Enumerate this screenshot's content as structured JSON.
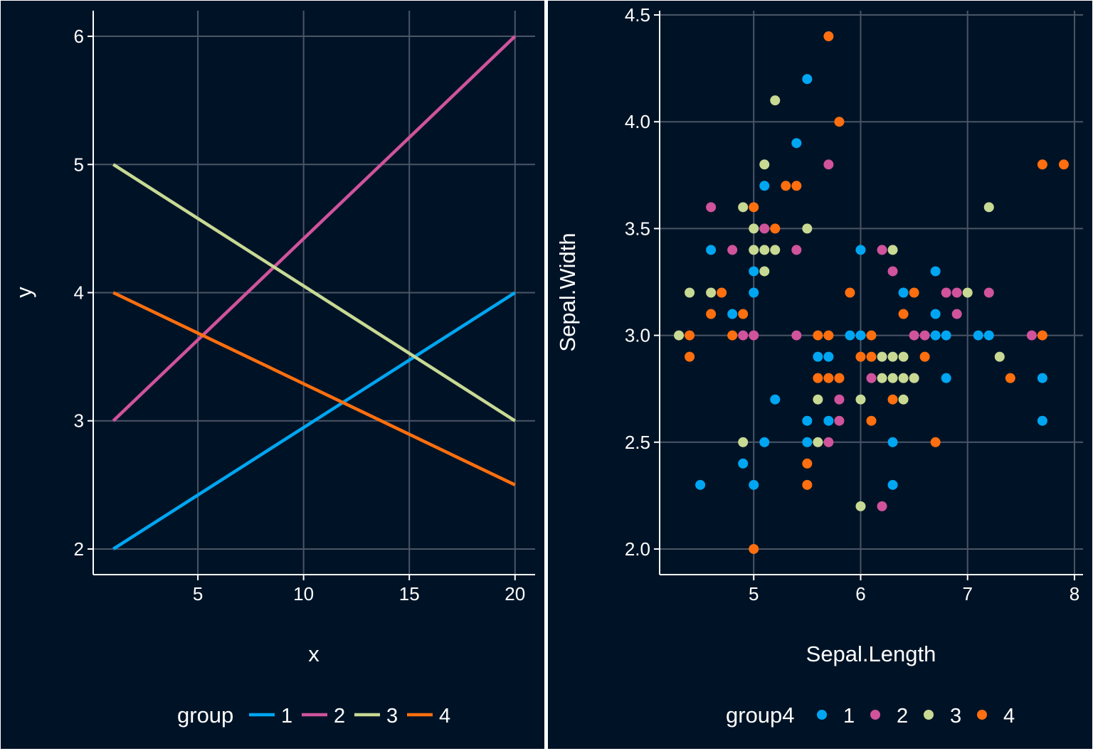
{
  "colors": {
    "background": "#001326",
    "divider": "#ffffff",
    "grid": "#4a5566",
    "text": "#ffffff",
    "palette": [
      "#00a6f2",
      "#d0539c",
      "#c8d994",
      "#ff6f0f"
    ]
  },
  "chart_data": [
    {
      "type": "line",
      "title": "",
      "xlabel": "x",
      "ylabel": "y",
      "xlim": [
        1,
        20
      ],
      "ylim": [
        2,
        6
      ],
      "xticks": [
        "5",
        "10",
        "15",
        "20"
      ],
      "yticks": [
        "2",
        "3",
        "4",
        "5",
        "6"
      ],
      "grid": true,
      "legend": {
        "title": "group",
        "position": "bottom",
        "labels": [
          "1",
          "2",
          "3",
          "4"
        ]
      },
      "series": [
        {
          "name": "1",
          "points": [
            [
              1,
              2
            ],
            [
              20,
              4
            ]
          ]
        },
        {
          "name": "2",
          "points": [
            [
              1,
              3
            ],
            [
              20,
              6
            ]
          ]
        },
        {
          "name": "3",
          "points": [
            [
              1,
              5
            ],
            [
              20,
              3
            ]
          ]
        },
        {
          "name": "4",
          "points": [
            [
              1,
              4
            ],
            [
              20,
              2.5
            ]
          ]
        }
      ]
    },
    {
      "type": "scatter",
      "title": "",
      "xlabel": "Sepal.Length",
      "ylabel": "Sepal.Width",
      "xlim": [
        4.3,
        7.9
      ],
      "ylim": [
        2.0,
        4.4
      ],
      "xticks": [
        "5",
        "6",
        "7",
        "8"
      ],
      "yticks": [
        "2.0",
        "2.5",
        "3.0",
        "3.5",
        "4.0",
        "4.5"
      ],
      "grid": true,
      "legend": {
        "title": "group4",
        "position": "bottom",
        "labels": [
          "1",
          "2",
          "3",
          "4"
        ]
      },
      "series": [
        {
          "name": "1",
          "points": [
            [
              5.5,
              4.2
            ],
            [
              5.4,
              3.9
            ],
            [
              5.1,
              3.7
            ],
            [
              4.6,
              3.4
            ],
            [
              6.0,
              3.4
            ],
            [
              5.0,
              3.3
            ],
            [
              6.7,
              3.3
            ],
            [
              5.0,
              3.2
            ],
            [
              6.4,
              3.2
            ],
            [
              4.8,
              3.1
            ],
            [
              6.7,
              3.1
            ],
            [
              5.9,
              3.0
            ],
            [
              6.0,
              3.0
            ],
            [
              6.7,
              3.0
            ],
            [
              6.8,
              3.0
            ],
            [
              7.1,
              3.0
            ],
            [
              7.2,
              3.0
            ],
            [
              5.6,
              2.9
            ],
            [
              5.7,
              2.9
            ],
            [
              6.8,
              2.8
            ],
            [
              7.7,
              2.8
            ],
            [
              5.2,
              2.7
            ],
            [
              5.5,
              2.6
            ],
            [
              5.7,
              2.6
            ],
            [
              7.7,
              2.6
            ],
            [
              5.1,
              2.5
            ],
            [
              5.5,
              2.5
            ],
            [
              6.3,
              2.5
            ],
            [
              4.9,
              2.4
            ],
            [
              4.5,
              2.3
            ],
            [
              5.0,
              2.3
            ],
            [
              6.3,
              2.3
            ]
          ]
        },
        {
          "name": "2",
          "points": [
            [
              5.7,
              3.8
            ],
            [
              4.6,
              3.6
            ],
            [
              5.1,
              3.5
            ],
            [
              4.8,
              3.4
            ],
            [
              5.4,
              3.4
            ],
            [
              6.2,
              3.4
            ],
            [
              6.3,
              3.3
            ],
            [
              6.8,
              3.2
            ],
            [
              6.9,
              3.2
            ],
            [
              7.2,
              3.2
            ],
            [
              6.9,
              3.1
            ],
            [
              4.9,
              3.0
            ],
            [
              5.0,
              3.0
            ],
            [
              5.4,
              3.0
            ],
            [
              6.5,
              3.0
            ],
            [
              6.6,
              3.0
            ],
            [
              7.6,
              3.0
            ],
            [
              6.1,
              2.8
            ],
            [
              6.5,
              2.8
            ],
            [
              5.8,
              2.7
            ],
            [
              5.8,
              2.6
            ],
            [
              5.7,
              2.5
            ],
            [
              6.2,
              2.2
            ]
          ]
        },
        {
          "name": "3",
          "points": [
            [
              5.2,
              4.1
            ],
            [
              5.1,
              3.8
            ],
            [
              4.9,
              3.6
            ],
            [
              5.0,
              3.5
            ],
            [
              5.5,
              3.5
            ],
            [
              5.0,
              3.4
            ],
            [
              5.1,
              3.4
            ],
            [
              5.2,
              3.4
            ],
            [
              6.3,
              3.4
            ],
            [
              5.1,
              3.3
            ],
            [
              4.4,
              3.2
            ],
            [
              4.6,
              3.2
            ],
            [
              7.0,
              3.2
            ],
            [
              4.3,
              3.0
            ],
            [
              6.2,
              2.9
            ],
            [
              6.3,
              2.9
            ],
            [
              6.4,
              2.9
            ],
            [
              7.3,
              2.9
            ],
            [
              6.2,
              2.8
            ],
            [
              6.3,
              2.8
            ],
            [
              6.4,
              2.8
            ],
            [
              6.5,
              2.8
            ],
            [
              5.6,
              2.7
            ],
            [
              6.0,
              2.7
            ],
            [
              6.4,
              2.7
            ],
            [
              7.2,
              3.6
            ],
            [
              4.9,
              2.5
            ],
            [
              5.6,
              2.5
            ],
            [
              6.0,
              2.2
            ]
          ]
        },
        {
          "name": "4",
          "points": [
            [
              5.7,
              4.4
            ],
            [
              5.8,
              4.0
            ],
            [
              7.7,
              3.8
            ],
            [
              7.9,
              3.8
            ],
            [
              5.3,
              3.7
            ],
            [
              5.4,
              3.7
            ],
            [
              5.0,
              3.6
            ],
            [
              5.2,
              3.5
            ],
            [
              4.7,
              3.2
            ],
            [
              5.9,
              3.2
            ],
            [
              6.5,
              3.2
            ],
            [
              4.6,
              3.1
            ],
            [
              4.9,
              3.1
            ],
            [
              6.4,
              3.1
            ],
            [
              4.4,
              3.0
            ],
            [
              4.8,
              3.0
            ],
            [
              5.6,
              3.0
            ],
            [
              5.7,
              3.0
            ],
            [
              6.1,
              3.0
            ],
            [
              7.7,
              3.0
            ],
            [
              4.4,
              2.9
            ],
            [
              6.0,
              2.9
            ],
            [
              6.1,
              2.9
            ],
            [
              6.6,
              2.9
            ],
            [
              5.6,
              2.8
            ],
            [
              5.7,
              2.8
            ],
            [
              5.8,
              2.8
            ],
            [
              7.4,
              2.8
            ],
            [
              6.3,
              2.7
            ],
            [
              6.1,
              2.6
            ],
            [
              6.7,
              2.5
            ],
            [
              5.5,
              2.4
            ],
            [
              5.5,
              2.3
            ],
            [
              5.0,
              2.0
            ]
          ]
        }
      ]
    }
  ]
}
